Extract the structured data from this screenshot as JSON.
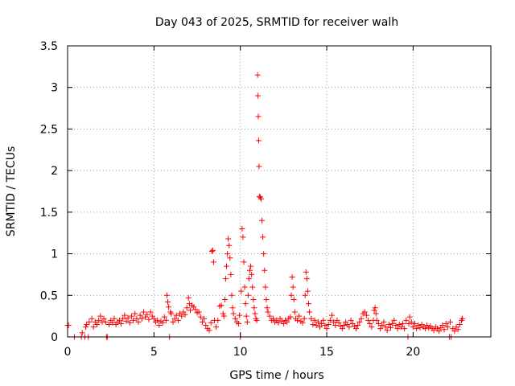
{
  "chart_data": {
    "type": "scatter",
    "title": "Day 043 of 2025, SRMTID for receiver walh",
    "xlabel": "GPS time / hours",
    "ylabel": "SRMTID / TECUs",
    "xlim": [
      0,
      24.5
    ],
    "ylim": [
      0,
      3.5
    ],
    "x_ticks": [
      0,
      5,
      10,
      15,
      20
    ],
    "x_tick_labels": [
      "0",
      "5",
      "10",
      "15",
      "20"
    ],
    "y_ticks": [
      0,
      0.5,
      1,
      1.5,
      2,
      2.5,
      3,
      3.5
    ],
    "y_tick_labels": [
      "0",
      "0.5",
      "1",
      "1.5",
      "2",
      "2.5",
      "3",
      "3.5"
    ],
    "grid": true,
    "marker": "+",
    "series_color": "#ff0000",
    "series": [
      {
        "name": "SRMTID",
        "points": [
          [
            0.0,
            0.14
          ],
          [
            0.05,
            0.14
          ],
          [
            0.4,
            0.0
          ],
          [
            0.8,
            0.0
          ],
          [
            0.85,
            0.05
          ],
          [
            1.0,
            0.0
          ],
          [
            1.05,
            0.12
          ],
          [
            1.1,
            0.15
          ],
          [
            1.2,
            0.0
          ],
          [
            1.25,
            0.18
          ],
          [
            1.4,
            0.22
          ],
          [
            1.5,
            0.12
          ],
          [
            1.6,
            0.18
          ],
          [
            1.7,
            0.15
          ],
          [
            1.8,
            0.2
          ],
          [
            1.9,
            0.25
          ],
          [
            2.0,
            0.18
          ],
          [
            2.1,
            0.22
          ],
          [
            2.2,
            0.18
          ],
          [
            2.25,
            0.0
          ],
          [
            2.3,
            0.0
          ],
          [
            2.4,
            0.15
          ],
          [
            2.5,
            0.2
          ],
          [
            2.6,
            0.17
          ],
          [
            2.7,
            0.22
          ],
          [
            2.8,
            0.15
          ],
          [
            2.9,
            0.18
          ],
          [
            3.0,
            0.2
          ],
          [
            3.1,
            0.16
          ],
          [
            3.2,
            0.22
          ],
          [
            3.3,
            0.26
          ],
          [
            3.4,
            0.19
          ],
          [
            3.5,
            0.23
          ],
          [
            3.6,
            0.17
          ],
          [
            3.7,
            0.25
          ],
          [
            3.8,
            0.2
          ],
          [
            3.9,
            0.28
          ],
          [
            4.0,
            0.22
          ],
          [
            4.1,
            0.18
          ],
          [
            4.2,
            0.26
          ],
          [
            4.3,
            0.22
          ],
          [
            4.4,
            0.3
          ],
          [
            4.5,
            0.24
          ],
          [
            4.6,
            0.27
          ],
          [
            4.7,
            0.21
          ],
          [
            4.8,
            0.3
          ],
          [
            4.9,
            0.25
          ],
          [
            5.0,
            0.22
          ],
          [
            5.1,
            0.18
          ],
          [
            5.2,
            0.2
          ],
          [
            5.3,
            0.14
          ],
          [
            5.4,
            0.19
          ],
          [
            5.5,
            0.17
          ],
          [
            5.6,
            0.24
          ],
          [
            5.7,
            0.2
          ],
          [
            5.75,
            0.5
          ],
          [
            5.8,
            0.42
          ],
          [
            5.85,
            0.36
          ],
          [
            5.9,
            0.0
          ],
          [
            5.95,
            0.3
          ],
          [
            6.0,
            0.28
          ],
          [
            6.1,
            0.18
          ],
          [
            6.2,
            0.22
          ],
          [
            6.3,
            0.26
          ],
          [
            6.4,
            0.2
          ],
          [
            6.5,
            0.28
          ],
          [
            6.6,
            0.25
          ],
          [
            6.7,
            0.3
          ],
          [
            6.8,
            0.27
          ],
          [
            6.9,
            0.35
          ],
          [
            7.0,
            0.47
          ],
          [
            7.05,
            0.4
          ],
          [
            7.1,
            0.32
          ],
          [
            7.2,
            0.38
          ],
          [
            7.3,
            0.36
          ],
          [
            7.4,
            0.33
          ],
          [
            7.5,
            0.29
          ],
          [
            7.6,
            0.3
          ],
          [
            7.7,
            0.24
          ],
          [
            7.8,
            0.18
          ],
          [
            7.9,
            0.22
          ],
          [
            8.0,
            0.14
          ],
          [
            8.1,
            0.1
          ],
          [
            8.2,
            0.08
          ],
          [
            8.3,
            0.17
          ],
          [
            8.35,
            1.03
          ],
          [
            8.4,
            1.04
          ],
          [
            8.45,
            0.9
          ],
          [
            8.5,
            0.2
          ],
          [
            8.6,
            0.12
          ],
          [
            8.7,
            0.2
          ],
          [
            8.8,
            0.37
          ],
          [
            8.9,
            0.38
          ],
          [
            9.0,
            0.28
          ],
          [
            9.05,
            0.25
          ],
          [
            9.1,
            0.45
          ],
          [
            9.15,
            0.7
          ],
          [
            9.2,
            0.85
          ],
          [
            9.25,
            1.0
          ],
          [
            9.3,
            1.18
          ],
          [
            9.35,
            1.1
          ],
          [
            9.4,
            0.95
          ],
          [
            9.45,
            0.75
          ],
          [
            9.5,
            0.5
          ],
          [
            9.55,
            0.35
          ],
          [
            9.6,
            0.28
          ],
          [
            9.7,
            0.22
          ],
          [
            9.8,
            0.18
          ],
          [
            9.9,
            0.16
          ],
          [
            9.95,
            0.26
          ],
          [
            10.0,
            0.0
          ],
          [
            10.05,
            0.55
          ],
          [
            10.1,
            1.3
          ],
          [
            10.15,
            1.2
          ],
          [
            10.2,
            0.9
          ],
          [
            10.25,
            0.6
          ],
          [
            10.3,
            0.4
          ],
          [
            10.35,
            0.25
          ],
          [
            10.4,
            0.18
          ],
          [
            10.45,
            0.5
          ],
          [
            10.5,
            0.7
          ],
          [
            10.55,
            0.8
          ],
          [
            10.6,
            0.85
          ],
          [
            10.65,
            0.75
          ],
          [
            10.7,
            0.6
          ],
          [
            10.75,
            0.45
          ],
          [
            10.8,
            0.35
          ],
          [
            10.85,
            0.28
          ],
          [
            10.9,
            0.22
          ],
          [
            10.95,
            0.2
          ],
          [
            11.0,
            3.15
          ],
          [
            11.02,
            2.9
          ],
          [
            11.04,
            2.65
          ],
          [
            11.06,
            2.36
          ],
          [
            11.08,
            2.05
          ],
          [
            11.1,
            1.69
          ],
          [
            11.15,
            1.68
          ],
          [
            11.2,
            1.66
          ],
          [
            11.25,
            1.4
          ],
          [
            11.3,
            1.2
          ],
          [
            11.35,
            1.0
          ],
          [
            11.4,
            0.8
          ],
          [
            11.45,
            0.6
          ],
          [
            11.5,
            0.45
          ],
          [
            11.55,
            0.35
          ],
          [
            11.6,
            0.3
          ],
          [
            11.7,
            0.25
          ],
          [
            11.8,
            0.2
          ],
          [
            11.9,
            0.22
          ],
          [
            12.0,
            0.18
          ],
          [
            12.1,
            0.2
          ],
          [
            12.2,
            0.17
          ],
          [
            12.3,
            0.22
          ],
          [
            12.4,
            0.19
          ],
          [
            12.5,
            0.16
          ],
          [
            12.6,
            0.2
          ],
          [
            12.7,
            0.18
          ],
          [
            12.8,
            0.22
          ],
          [
            12.9,
            0.24
          ],
          [
            12.95,
            0.5
          ],
          [
            13.0,
            0.72
          ],
          [
            13.05,
            0.6
          ],
          [
            13.1,
            0.45
          ],
          [
            13.15,
            0.3
          ],
          [
            13.2,
            0.22
          ],
          [
            13.3,
            0.2
          ],
          [
            13.4,
            0.25
          ],
          [
            13.5,
            0.19
          ],
          [
            13.6,
            0.17
          ],
          [
            13.7,
            0.22
          ],
          [
            13.75,
            0.5
          ],
          [
            13.8,
            0.78
          ],
          [
            13.85,
            0.7
          ],
          [
            13.9,
            0.55
          ],
          [
            13.95,
            0.4
          ],
          [
            14.0,
            0.3
          ],
          [
            14.1,
            0.22
          ],
          [
            14.2,
            0.15
          ],
          [
            14.3,
            0.2
          ],
          [
            14.4,
            0.14
          ],
          [
            14.5,
            0.18
          ],
          [
            14.6,
            0.12
          ],
          [
            14.7,
            0.16
          ],
          [
            14.8,
            0.2
          ],
          [
            14.9,
            0.14
          ],
          [
            15.0,
            0.1
          ],
          [
            15.1,
            0.15
          ],
          [
            15.2,
            0.2
          ],
          [
            15.3,
            0.26
          ],
          [
            15.4,
            0.18
          ],
          [
            15.5,
            0.14
          ],
          [
            15.6,
            0.2
          ],
          [
            15.7,
            0.17
          ],
          [
            15.8,
            0.13
          ],
          [
            15.9,
            0.1
          ],
          [
            16.0,
            0.14
          ],
          [
            16.1,
            0.18
          ],
          [
            16.2,
            0.15
          ],
          [
            16.3,
            0.12
          ],
          [
            16.4,
            0.2
          ],
          [
            16.5,
            0.16
          ],
          [
            16.6,
            0.13
          ],
          [
            16.7,
            0.1
          ],
          [
            16.8,
            0.14
          ],
          [
            16.9,
            0.18
          ],
          [
            17.0,
            0.22
          ],
          [
            17.1,
            0.28
          ],
          [
            17.2,
            0.3
          ],
          [
            17.3,
            0.26
          ],
          [
            17.4,
            0.2
          ],
          [
            17.5,
            0.16
          ],
          [
            17.6,
            0.12
          ],
          [
            17.7,
            0.2
          ],
          [
            17.75,
            0.32
          ],
          [
            17.8,
            0.35
          ],
          [
            17.85,
            0.28
          ],
          [
            17.9,
            0.2
          ],
          [
            18.0,
            0.16
          ],
          [
            18.1,
            0.1
          ],
          [
            18.2,
            0.14
          ],
          [
            18.3,
            0.18
          ],
          [
            18.4,
            0.12
          ],
          [
            18.5,
            0.08
          ],
          [
            18.6,
            0.15
          ],
          [
            18.7,
            0.11
          ],
          [
            18.8,
            0.16
          ],
          [
            18.9,
            0.2
          ],
          [
            19.0,
            0.14
          ],
          [
            19.1,
            0.1
          ],
          [
            19.2,
            0.15
          ],
          [
            19.3,
            0.12
          ],
          [
            19.4,
            0.16
          ],
          [
            19.5,
            0.1
          ],
          [
            19.6,
            0.2
          ],
          [
            19.7,
            0.0
          ],
          [
            19.75,
            0.16
          ],
          [
            19.8,
            0.24
          ],
          [
            19.9,
            0.18
          ],
          [
            20.0,
            0.12
          ],
          [
            20.1,
            0.16
          ],
          [
            20.2,
            0.1
          ],
          [
            20.3,
            0.14
          ],
          [
            20.4,
            0.11
          ],
          [
            20.5,
            0.15
          ],
          [
            20.6,
            0.12
          ],
          [
            20.7,
            0.1
          ],
          [
            20.8,
            0.14
          ],
          [
            20.9,
            0.11
          ],
          [
            21.0,
            0.13
          ],
          [
            21.1,
            0.1
          ],
          [
            21.2,
            0.08
          ],
          [
            21.3,
            0.12
          ],
          [
            21.4,
            0.1
          ],
          [
            21.5,
            0.07
          ],
          [
            21.6,
            0.11
          ],
          [
            21.7,
            0.14
          ],
          [
            21.8,
            0.09
          ],
          [
            21.9,
            0.16
          ],
          [
            22.0,
            0.12
          ],
          [
            22.1,
            0.0
          ],
          [
            22.15,
            0.18
          ],
          [
            22.2,
            0.0
          ],
          [
            22.3,
            0.1
          ],
          [
            22.4,
            0.07
          ],
          [
            22.5,
            0.12
          ],
          [
            22.6,
            0.09
          ],
          [
            22.7,
            0.15
          ],
          [
            22.8,
            0.2
          ],
          [
            22.85,
            0.22
          ]
        ]
      }
    ]
  }
}
